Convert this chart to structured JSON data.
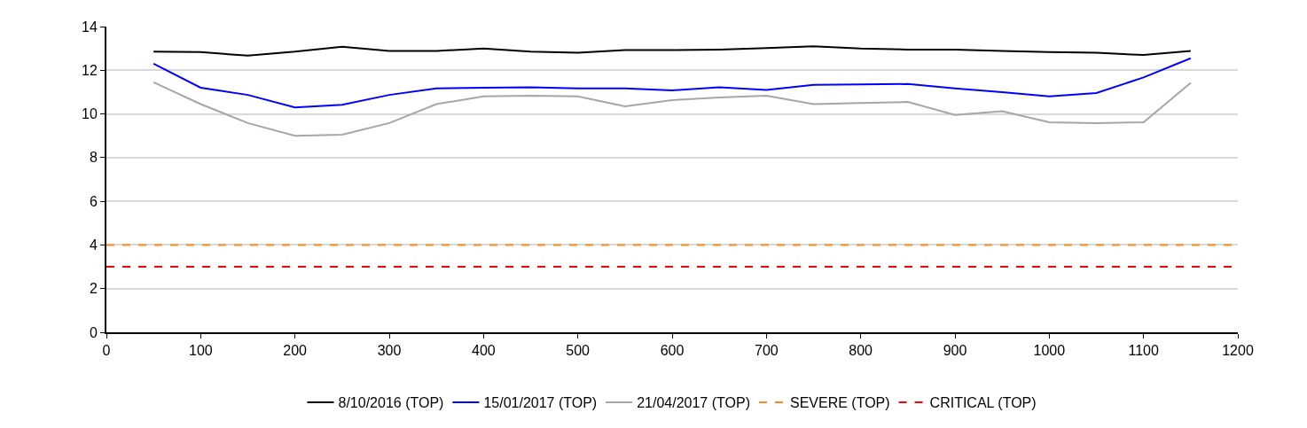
{
  "chart_data": {
    "type": "line",
    "x": [
      50,
      100,
      150,
      200,
      250,
      300,
      350,
      400,
      450,
      500,
      550,
      600,
      650,
      700,
      750,
      800,
      850,
      900,
      950,
      1000,
      1050,
      1100,
      1150
    ],
    "series": [
      {
        "name": "8/10/2016 (TOP)",
        "color": "#000000",
        "values": [
          12.85,
          12.83,
          12.67,
          12.85,
          13.08,
          12.88,
          12.88,
          13.0,
          12.85,
          12.8,
          12.92,
          12.92,
          12.95,
          13.02,
          13.1,
          13.0,
          12.95,
          12.95,
          12.88,
          12.83,
          12.8,
          12.7,
          12.88
        ]
      },
      {
        "name": "15/01/2017 (TOP)",
        "color": "#0000ff",
        "values": [
          12.3,
          11.2,
          10.87,
          10.3,
          10.42,
          10.87,
          11.17,
          11.2,
          11.22,
          11.17,
          11.17,
          11.08,
          11.22,
          11.1,
          11.33,
          11.35,
          11.37,
          11.17,
          11.0,
          10.8,
          10.96,
          11.67,
          12.55
        ]
      },
      {
        "name": "21/04/2017 (TOP)",
        "color": "#a6a6a6",
        "values": [
          11.45,
          10.45,
          9.58,
          9.0,
          9.05,
          9.58,
          10.45,
          10.8,
          10.83,
          10.8,
          10.35,
          10.63,
          10.75,
          10.83,
          10.45,
          10.5,
          10.55,
          9.95,
          10.12,
          9.62,
          9.58,
          9.62,
          11.42
        ]
      }
    ],
    "ref_lines": [
      {
        "axis": "y",
        "value": 4,
        "label": "SEVERE (TOP)",
        "color": "#ff8c1a",
        "line_style": "dashed"
      },
      {
        "axis": "y",
        "value": 3,
        "label": "CRITICAL (TOP)",
        "color": "#ff0000",
        "line_style": "dashed"
      }
    ],
    "xlim": [
      0,
      1200
    ],
    "xticks": [
      0,
      100,
      200,
      300,
      400,
      500,
      600,
      700,
      800,
      900,
      1000,
      1100,
      1200
    ],
    "ylim": [
      0,
      14
    ],
    "yticks": [
      0,
      2,
      4,
      6,
      8,
      10,
      12,
      14
    ],
    "grid": "y",
    "legend": "bottom",
    "marker": "none",
    "line_style": "solid"
  }
}
